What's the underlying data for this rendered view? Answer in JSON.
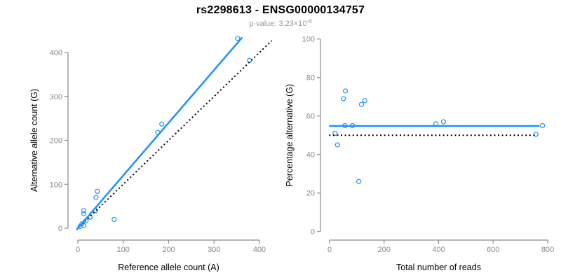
{
  "header": {
    "title": "rs2298613 - ENSG00000134757",
    "pvalue_label": "p-value:",
    "pvalue_mantissa": "3.23",
    "pvalue_multiplier": "×10",
    "pvalue_exponent": "-6"
  },
  "colors": {
    "accent_blue": "#1E90FF",
    "axis_gray": "#8A8A8A",
    "tick_label_gray": "#8A8A8A",
    "axis_title_black": "#000000",
    "reference_black": "#000000",
    "subtitle_gray": "#9A9A9A"
  },
  "chart_data": [
    {
      "type": "scatter",
      "title": "",
      "xlabel": "Reference allele count (A)",
      "ylabel": "Alternative allele count (G)",
      "xlim": [
        0,
        400
      ],
      "ylim": [
        0,
        400
      ],
      "xticks": [
        0,
        100,
        200,
        300,
        400
      ],
      "yticks": [
        0,
        100,
        200,
        300,
        400
      ],
      "grid": false,
      "legend": "none",
      "points": [
        [
          5,
          4
        ],
        [
          9,
          10
        ],
        [
          13,
          6
        ],
        [
          13,
          33
        ],
        [
          13,
          40
        ],
        [
          18,
          17
        ],
        [
          27,
          25
        ],
        [
          39,
          40
        ],
        [
          40,
          70
        ],
        [
          43,
          84
        ],
        [
          80,
          20
        ],
        [
          176,
          218
        ],
        [
          185,
          237
        ],
        [
          352,
          432
        ],
        [
          378,
          382
        ]
      ],
      "fit_line": {
        "style": "solid",
        "color": "#1E90FF",
        "slope": 1.2,
        "intercept": 0,
        "x1": -3,
        "y1": -3.6,
        "x2": 362,
        "y2": 434.4
      },
      "reference_line": {
        "style": "dotted",
        "color": "#000000",
        "slope": 1.0,
        "intercept": 0,
        "x1": -3,
        "y1": -3,
        "x2": 427,
        "y2": 427
      }
    },
    {
      "type": "scatter",
      "title": "",
      "xlabel": "Total number of reads",
      "ylabel": "Percentage alternative (G)",
      "xlim": [
        0,
        800
      ],
      "ylim": [
        0,
        100
      ],
      "xticks": [
        0,
        200,
        400,
        600,
        800
      ],
      "yticks": [
        0,
        20,
        40,
        60,
        80,
        100
      ],
      "grid": false,
      "legend": "none",
      "points": [
        [
          20,
          51
        ],
        [
          29,
          45
        ],
        [
          51,
          69
        ],
        [
          56,
          55
        ],
        [
          58,
          73
        ],
        [
          84,
          55
        ],
        [
          107,
          26
        ],
        [
          117,
          66
        ],
        [
          129,
          68
        ],
        [
          390,
          56
        ],
        [
          418,
          57
        ],
        [
          757,
          50.5
        ],
        [
          781,
          55
        ]
      ],
      "fit_line": {
        "style": "solid",
        "color": "#1E90FF",
        "slope": 0,
        "intercept": 54.8,
        "x1": -2,
        "y1": 54.8,
        "x2": 770,
        "y2": 54.8
      },
      "reference_line": {
        "style": "dotted",
        "color": "#000000",
        "slope": 0,
        "intercept": 50,
        "x1": -2,
        "y1": 50,
        "x2": 757,
        "y2": 50
      }
    }
  ]
}
